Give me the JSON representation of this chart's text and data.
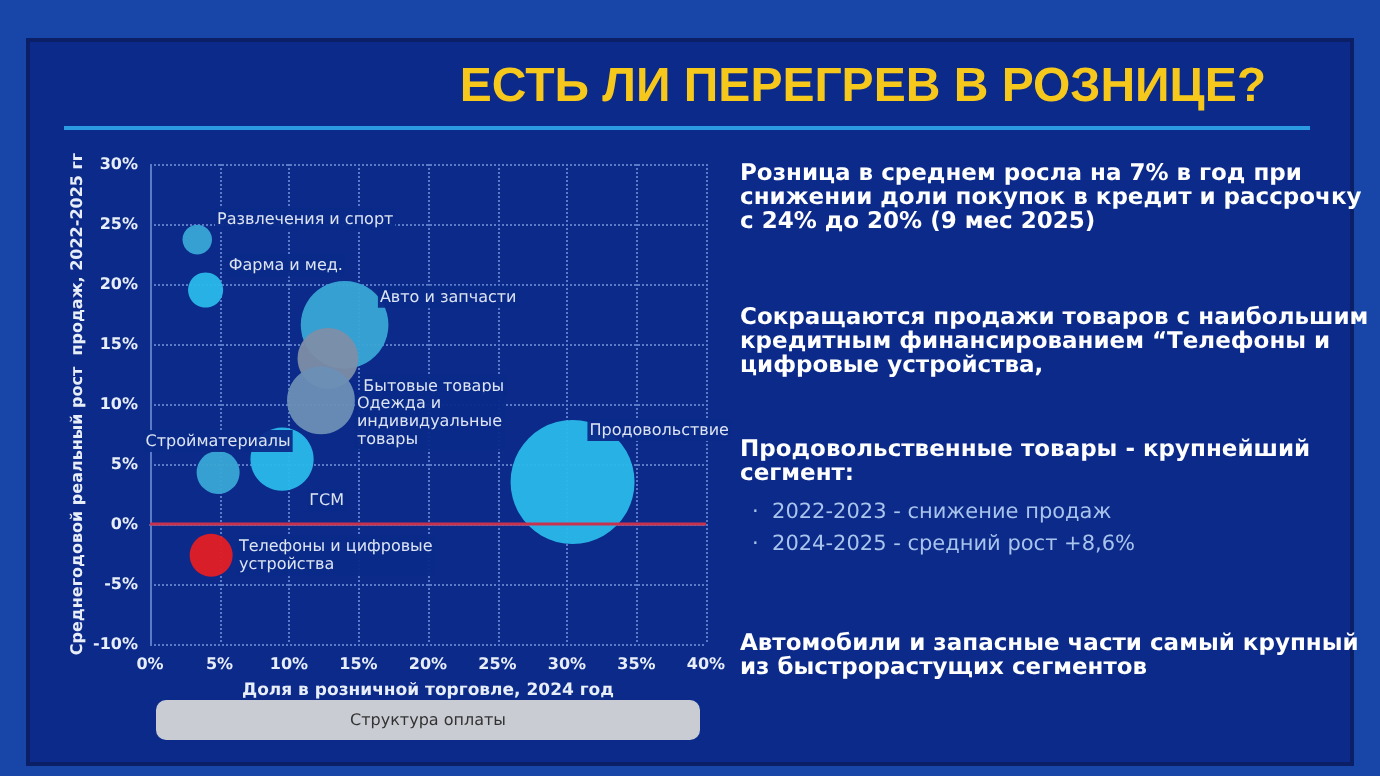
{
  "chart_data": {
    "type": "bubble",
    "title": "ЕСТЬ ЛИ ПЕРЕГРЕВ В РОЗНИЦЕ?",
    "xlabel": "Доля в розничной торговле, 2024 год",
    "ylabel": "Среднегодовой реальный рост  продаж, 2022-2025 гг",
    "x": [
      3.4,
      4.0,
      14.0,
      12.8,
      12.3,
      4.9,
      9.5,
      30.4,
      4.4
    ],
    "values": [
      23.7,
      19.5,
      16.6,
      13.8,
      10.3,
      4.3,
      5.4,
      3.5,
      -2.6
    ],
    "sizes": [
      0.057,
      0.08,
      0.5,
      0.24,
      0.3,
      0.12,
      0.26,
      1,
      0.12
    ],
    "colors": [
      "#3aa6d6",
      "#2ab8ea",
      "#3aa6d6",
      "#7d8ea6",
      "#6b8fb5",
      "#3aa6d6",
      "#2ab8ea",
      "#2ab8ea",
      "#e31e24"
    ],
    "xlim": [
      0,
      40
    ],
    "xticks": [
      {
        "value": 0,
        "label": "0%"
      },
      {
        "value": 5,
        "label": "5%"
      },
      {
        "value": 10,
        "label": "10%"
      },
      {
        "value": 15,
        "label": "15%"
      },
      {
        "value": 20,
        "label": "20%"
      },
      {
        "value": 25,
        "label": "25%"
      },
      {
        "value": 30,
        "label": "30%"
      },
      {
        "value": 35,
        "label": "35%"
      },
      {
        "value": 40,
        "label": "40%"
      }
    ],
    "ylim": [
      -10,
      30
    ],
    "yticks": [
      {
        "value": -10,
        "label": "-10%"
      },
      {
        "value": -5,
        "label": "-5%"
      },
      {
        "value": 0,
        "label": "0%"
      },
      {
        "value": 5,
        "label": "5%"
      },
      {
        "value": 10,
        "label": "10%"
      },
      {
        "value": 15,
        "label": "15%"
      },
      {
        "value": 20,
        "label": "20%"
      },
      {
        "value": 25,
        "label": "25%"
      },
      {
        "value": 30,
        "label": "30%"
      }
    ],
    "grid": true,
    "ref_lines": [
      {
        "axis": "y",
        "value": 0,
        "label": null,
        "color": "#c8324e"
      }
    ],
    "annotations": [
      {
        "text": "Развлечения и спорт",
        "x": 3.4,
        "y": 23.7
      },
      {
        "text": "Фарма и мед.",
        "x": 4.0,
        "y": 19.5
      },
      {
        "text": "Авто и запчасти",
        "x": 14.0,
        "y": 16.6
      },
      {
        "text": "Бытовые товары",
        "x": 12.8,
        "y": 13.8
      },
      {
        "text": "Одежда и\nиндивидуальные\nтовары",
        "x": 12.3,
        "y": 10.3
      },
      {
        "text": "Стройматериалы",
        "x": 4.9,
        "y": 4.3
      },
      {
        "text": "ГСМ",
        "x": 9.5,
        "y": 5.4
      },
      {
        "text": "Продовольствие",
        "x": 30.4,
        "y": 3.5
      },
      {
        "text": "Телефоны и цифровые\nустройства",
        "x": 4.4,
        "y": -2.6
      },
      "Розница в среднем росла на 7% в год при\nснижении доли покупок в кредит и рассрочку\nс 24% до 20% (9 мес 2025)",
      "Сокращаются продажи товаров с наибольшим\nкредитным финансированием “Телефоны и\nцифровые устройства,",
      "Продовольственные товары - крупнейший\nсегмент:",
      "·  2022-2023 - снижение продаж\n·  2024-2025 - средний рост +8,6%",
      "Автомобили и запасные части самый крупный\nиз быстрорастущих сегментов",
      "Структура оплаты"
    ]
  }
}
